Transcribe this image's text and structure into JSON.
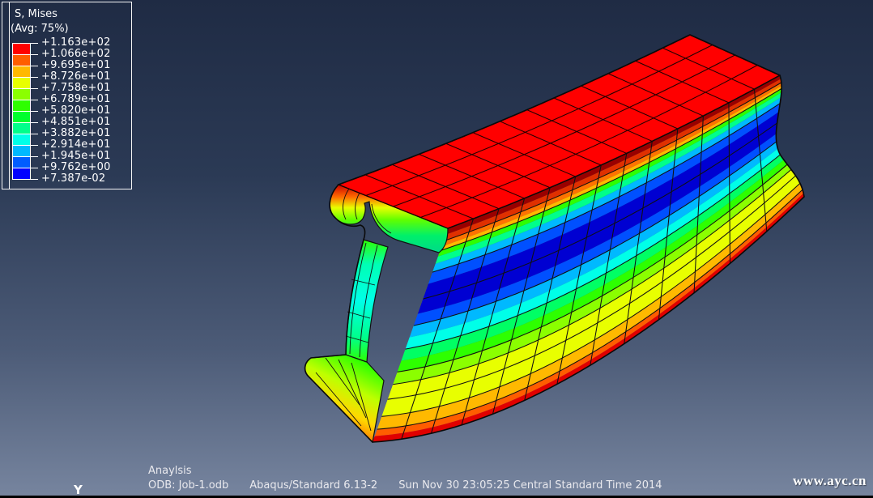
{
  "legend": {
    "title": "S, Mises",
    "subtitle": "(Avg: 75%)",
    "tick_labels": [
      "+1.163e+02",
      "+1.066e+02",
      "+9.695e+01",
      "+8.726e+01",
      "+7.758e+01",
      "+6.789e+01",
      "+5.820e+01",
      "+4.851e+01",
      "+3.882e+01",
      "+2.914e+01",
      "+1.945e+01",
      "+9.762e+00",
      "+7.387e-02"
    ],
    "colors": [
      "#FF0000",
      "#FF5D00",
      "#FFB900",
      "#E8FF00",
      "#8BFF00",
      "#2EFF00",
      "#00FF2E",
      "#00FF8B",
      "#00FFE8",
      "#00B9FF",
      "#005DFF",
      "#0000FF"
    ]
  },
  "status": {
    "line1": "Anaylsis",
    "odb": "ODB: Job-1.odb",
    "solver": "Abaqus/Standard 6.13-2",
    "datetime": "Sun Nov 30 23:05:25 Central Standard Time 2014"
  },
  "triad": {
    "y_label": "Y"
  },
  "watermark": "www.ayc.cn",
  "viewport": {
    "bg_top": "#1F2B44",
    "bg_bottom": "#77859F"
  },
  "beam": {
    "result_max_color": "#FF0000",
    "bands": [
      [
        0.0,
        0.03,
        "#990000"
      ],
      [
        0.03,
        0.06,
        "#E03000"
      ],
      [
        0.06,
        0.085,
        "#FF7300"
      ],
      [
        0.085,
        0.105,
        "#FFB900"
      ],
      [
        0.105,
        0.132,
        "#2EFF00"
      ],
      [
        0.132,
        0.166,
        "#00FF8B"
      ],
      [
        0.166,
        0.205,
        "#00B9FF"
      ],
      [
        0.205,
        0.26,
        "#0050FF"
      ],
      [
        0.26,
        0.4,
        "#0000D2"
      ],
      [
        0.4,
        0.455,
        "#0050FF"
      ],
      [
        0.455,
        0.51,
        "#00B9FF"
      ],
      [
        0.51,
        0.565,
        "#00FFE8"
      ],
      [
        0.565,
        0.62,
        "#00FF64"
      ],
      [
        0.62,
        0.672,
        "#2EFF00"
      ],
      [
        0.672,
        0.73,
        "#8BFF00"
      ],
      [
        0.73,
        0.88,
        "#E8FF00"
      ],
      [
        0.88,
        0.94,
        "#FFB900"
      ],
      [
        0.94,
        0.972,
        "#FF5D00"
      ],
      [
        0.972,
        1.001,
        "#E00000"
      ]
    ]
  }
}
